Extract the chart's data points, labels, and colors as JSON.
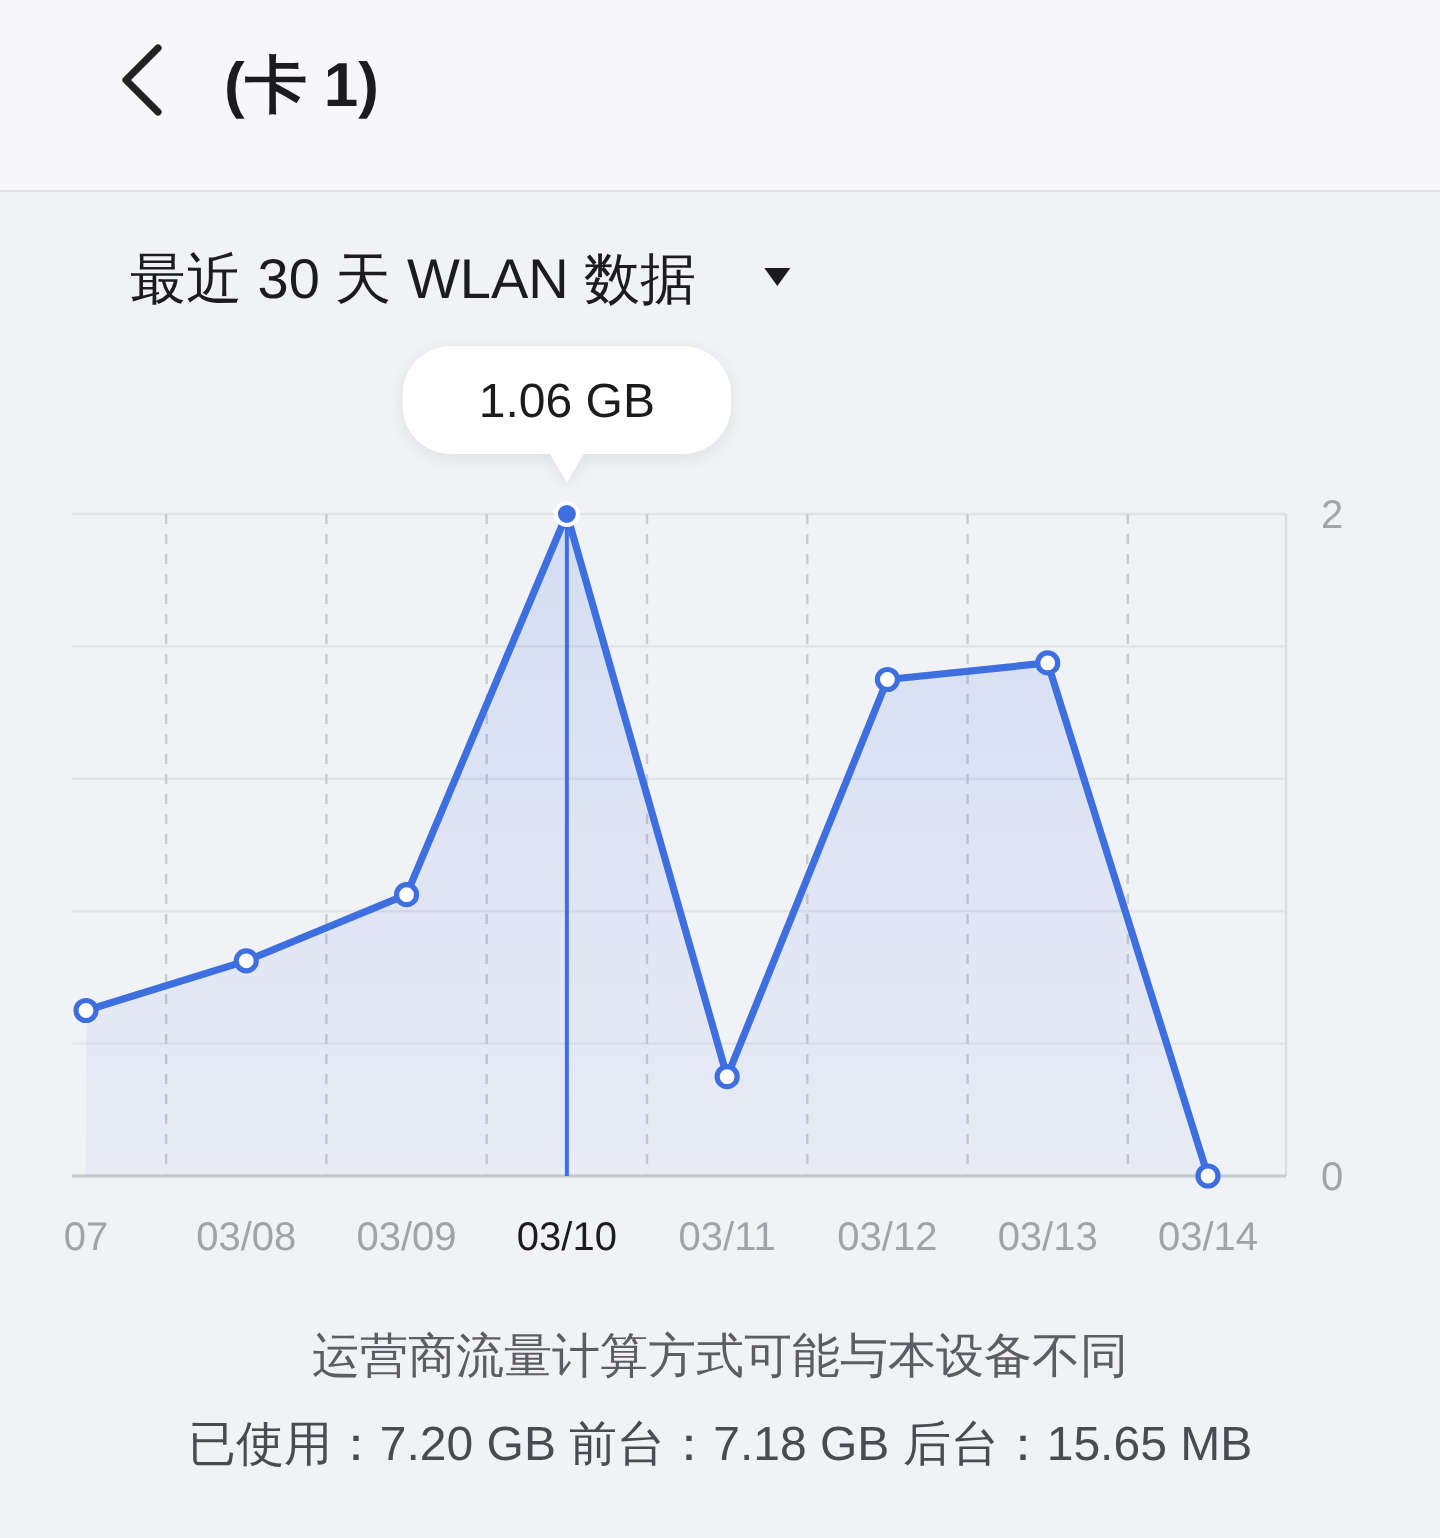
{
  "chart_data": {
    "type": "area",
    "title": "(卡 1)",
    "subtitle": "最近 30 天 WLAN 数据",
    "categories": [
      "07",
      "03/08",
      "03/09",
      "03/10",
      "03/11",
      "03/12",
      "03/13",
      "03/14"
    ],
    "series": [
      {
        "color": "#3e6fe0",
        "values": [
          0.5,
          0.65,
          0.85,
          2,
          0.3,
          1.5,
          1.55,
          0
        ]
      }
    ],
    "ylim": [
      0,
      2
    ],
    "yticks": [
      0,
      {
        "value": 0.4,
        "label": null
      },
      {
        "value": 0.8,
        "label": null
      },
      {
        "value": 1.2,
        "label": null
      },
      {
        "value": 1.6,
        "label": null
      },
      2
    ],
    "grid": true,
    "marker": "circle",
    "ref_lines": [
      {
        "axis": "x",
        "value": "03/10",
        "color": "#3e6fe0"
      }
    ],
    "annotations": [
      {
        "text": "1.06 GB",
        "x": "03/10",
        "y": 2
      },
      "运营商流量计算方式可能与本设备不同",
      "已使用：7.20 GB 前台：7.18 GB 后台：15.65 MB"
    ]
  }
}
